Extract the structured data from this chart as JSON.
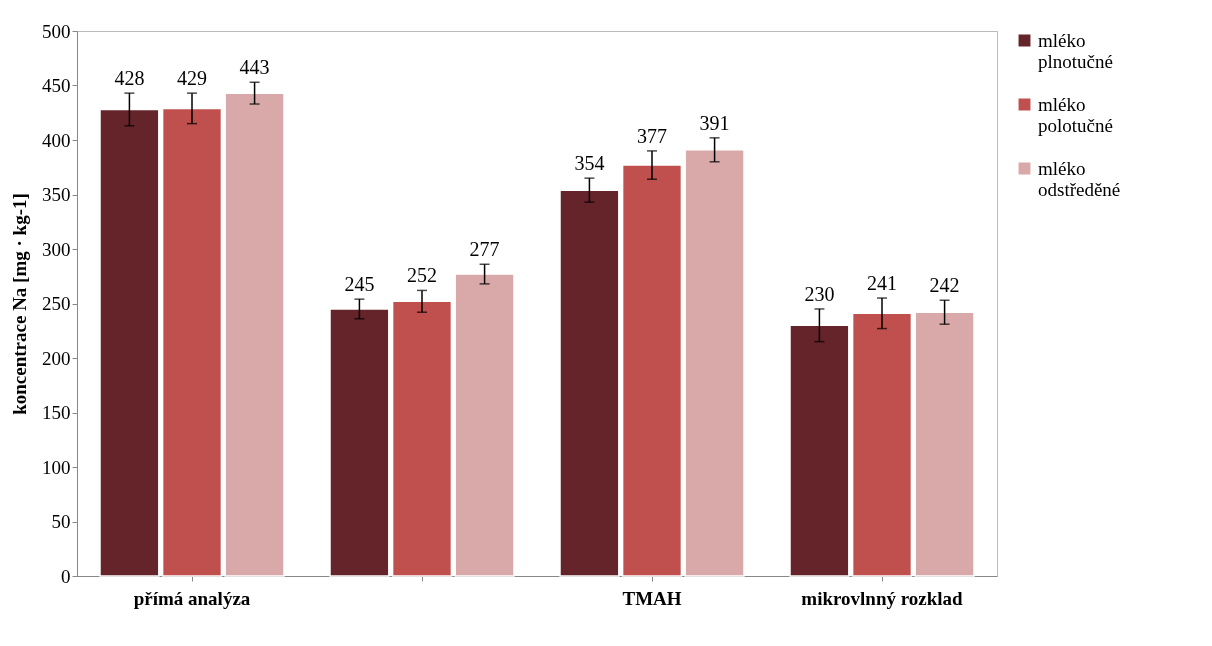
{
  "chart_data": {
    "type": "bar",
    "ylabel": "koncentrace Na [mg · kg-1]",
    "categories": [
      "přímá analýza",
      null,
      "TMAH",
      "mikrovlnný rozklad"
    ],
    "series": [
      {
        "name": "mléko plnotučné",
        "color": "#65232a",
        "values": [
          428,
          245,
          354,
          230
        ],
        "errors": [
          15,
          9,
          11,
          15
        ]
      },
      {
        "name": "mléko polotučné",
        "color": "#c0504d",
        "values": [
          429,
          252,
          377,
          241
        ],
        "errors": [
          14,
          10,
          13,
          14
        ]
      },
      {
        "name": "mléko odstředěné",
        "color": "#d9a9a9",
        "values": [
          443,
          277,
          391,
          242
        ],
        "errors": [
          10,
          9,
          11,
          11
        ]
      }
    ],
    "ylim": [
      0,
      500
    ],
    "yticks": [
      0,
      50,
      100,
      150,
      200,
      250,
      300,
      350,
      400,
      450,
      500
    ],
    "data_labels": true,
    "grid": false,
    "legend": "right"
  }
}
